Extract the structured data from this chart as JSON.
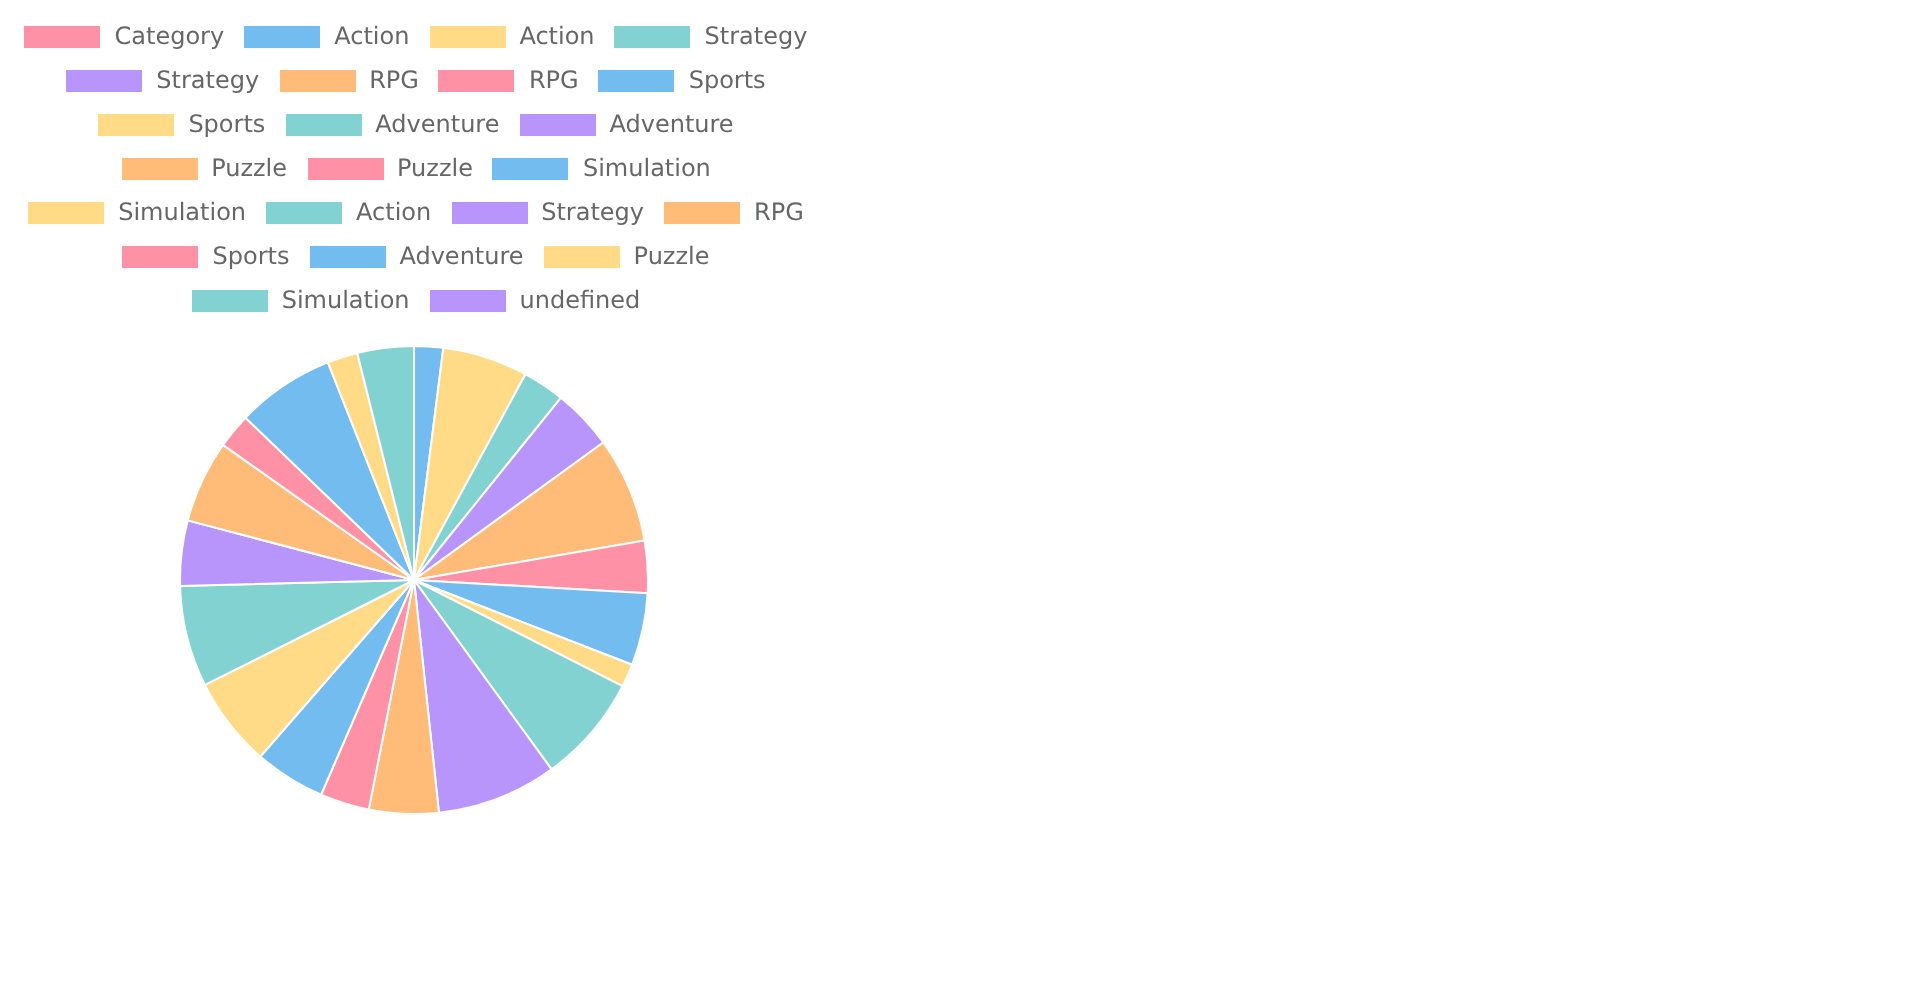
{
  "chart_data": {
    "type": "pie",
    "categories": [
      "Category",
      "Action",
      "Action",
      "Strategy",
      "Strategy",
      "RPG",
      "RPG",
      "Sports",
      "Sports",
      "Adventure",
      "Adventure",
      "Puzzle",
      "Puzzle",
      "Simulation",
      "Simulation",
      "Action",
      "Strategy",
      "RPG",
      "Sports",
      "Adventure",
      "Puzzle",
      "Simulation",
      "undefined"
    ],
    "values": [
      null,
      2.0,
      5.9,
      2.9,
      4.2,
      7.3,
      3.6,
      5.0,
      1.6,
      7.5,
      8.3,
      4.8,
      3.4,
      4.9,
      6.2,
      7.0,
      4.5,
      5.7,
      2.4,
      6.8,
      2.1,
      3.9,
      null
    ],
    "colors": [
      "#ff91a7",
      "#73bcef",
      "#ffda87",
      "#83d2d2",
      "#b795fb",
      "#ffbb78",
      "#ff91a7",
      "#73bcef",
      "#ffda87",
      "#83d2d2",
      "#b795fb",
      "#ffbb78",
      "#ff91a7",
      "#73bcef",
      "#ffda87",
      "#83d2d2",
      "#b795fb",
      "#ffbb78",
      "#ff91a7",
      "#73bcef",
      "#ffda87",
      "#83d2d2",
      "#b795fb"
    ],
    "legend": "top"
  }
}
